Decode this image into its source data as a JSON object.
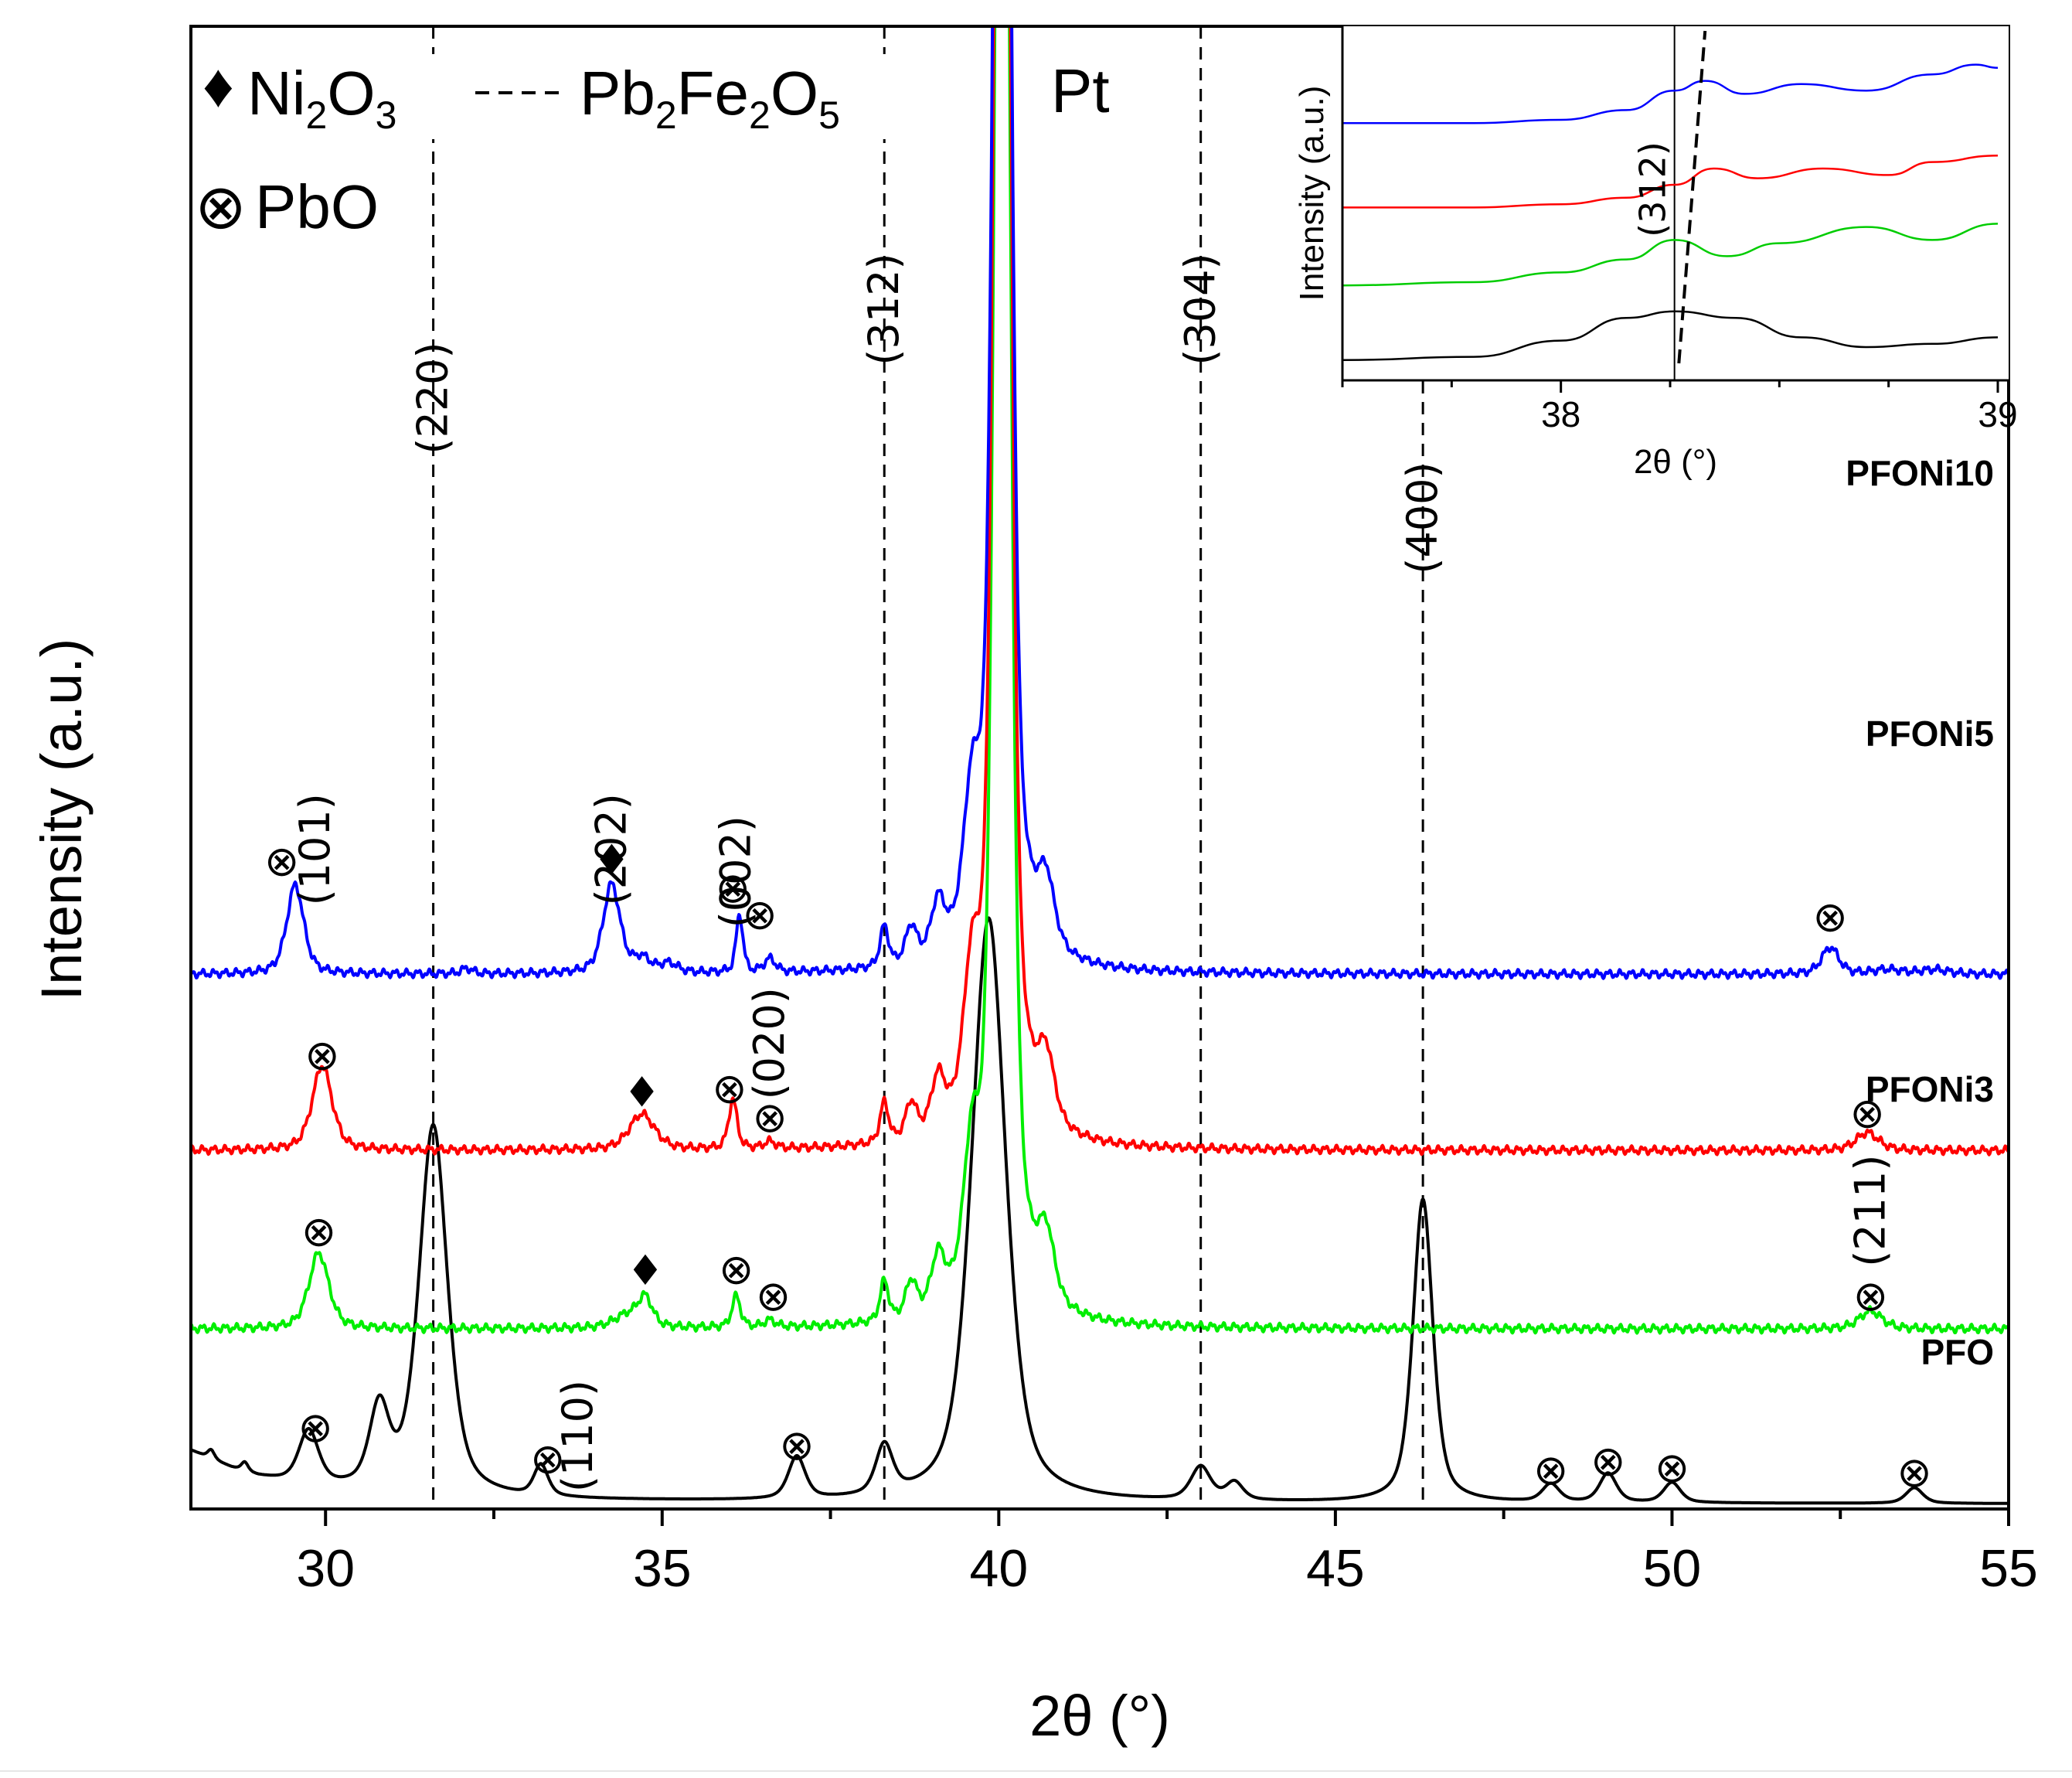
{
  "chart_data": {
    "type": "line",
    "xlabel": "2θ (°)",
    "ylabel": "Intensity (a.u.)",
    "xlim": [
      28,
      55
    ],
    "xticks": [
      30,
      35,
      40,
      45,
      50,
      55
    ],
    "xtick_labels": [
      "30",
      "35",
      "40",
      "45",
      "50",
      "55"
    ],
    "y_ticks_shown": false,
    "legend": [
      {
        "marker": "♦",
        "name": "Ni",
        "sub1": "2",
        "name2": "O",
        "sub2": "3"
      },
      {
        "marker": "- - -",
        "name": "Pb",
        "sub1": "2",
        "name2": "Fe",
        "sub2": "2",
        "name3": "O",
        "sub3": "5"
      },
      {
        "marker": "⊗",
        "name": "PbO"
      },
      {
        "marker": "",
        "name": "Pt"
      }
    ],
    "reference_lines": [
      {
        "x": 31.6,
        "label": "(220)"
      },
      {
        "x": 38.3,
        "label": "(312)"
      },
      {
        "x": 43.0,
        "label": "(304)"
      },
      {
        "x": 46.3,
        "label": "(400)"
      }
    ],
    "series": [
      {
        "name": "PFO",
        "color": "#000000",
        "baseline": 0.0,
        "background": [
          [
            28,
            0.12
          ],
          [
            28.3,
            0.1
          ],
          [
            28.6,
            0.08
          ],
          [
            29,
            0.06
          ],
          [
            29.5,
            0.045
          ],
          [
            30,
            0.035
          ],
          [
            31,
            0.02
          ],
          [
            33,
            0.01
          ],
          [
            38,
            0.005
          ],
          [
            55,
            0.003
          ]
        ],
        "peaks": [
          {
            "x": 28.3,
            "h": 0.02,
            "w": 0.12
          },
          {
            "x": 28.8,
            "h": 0.02,
            "w": 0.12
          },
          {
            "x": 29.75,
            "h": 0.12,
            "w": 0.35
          },
          {
            "x": 30.8,
            "h": 0.18,
            "w": 0.35
          },
          {
            "x": 31.6,
            "h": 0.83,
            "w": 0.5
          },
          {
            "x": 33.2,
            "h": 0.07,
            "w": 0.25
          },
          {
            "x": 37.0,
            "h": 0.095,
            "w": 0.3
          },
          {
            "x": 38.3,
            "h": 0.11,
            "w": 0.3
          },
          {
            "x": 39.85,
            "h": 1.31,
            "w": 0.6
          },
          {
            "x": 43.0,
            "h": 0.075,
            "w": 0.35
          },
          {
            "x": 43.5,
            "h": 0.04,
            "w": 0.3
          },
          {
            "x": 46.3,
            "h": 0.68,
            "w": 0.35
          },
          {
            "x": 48.2,
            "h": 0.04,
            "w": 0.3
          },
          {
            "x": 49.05,
            "h": 0.065,
            "w": 0.3
          },
          {
            "x": 50.0,
            "h": 0.045,
            "w": 0.3
          },
          {
            "x": 53.6,
            "h": 0.035,
            "w": 0.3
          }
        ]
      },
      {
        "name": "PFONi3",
        "color": "#00ee00",
        "baseline": 0.395,
        "peaks": [
          {
            "x": 29.9,
            "h": 0.17,
            "w": 0.35
          },
          {
            "x": 34.5,
            "h": 0.03,
            "w": 0.5
          },
          {
            "x": 34.75,
            "h": 0.06,
            "w": 0.25
          },
          {
            "x": 36.1,
            "h": 0.07,
            "w": 0.15
          },
          {
            "x": 36.6,
            "h": 0.015,
            "w": 0.2
          },
          {
            "x": 38.3,
            "h": 0.09,
            "w": 0.15
          },
          {
            "x": 38.7,
            "h": 0.08,
            "w": 0.2
          },
          {
            "x": 39.1,
            "h": 0.12,
            "w": 0.25
          },
          {
            "x": 39.6,
            "h": 0.3,
            "w": 0.3
          },
          {
            "x": 40.05,
            "h": 5.0,
            "w": 0.25
          },
          {
            "x": 40.7,
            "h": 0.15,
            "w": 0.3
          },
          {
            "x": 52.95,
            "h": 0.04,
            "w": 0.4
          }
        ]
      },
      {
        "name": "PFONi5",
        "color": "#ff0000",
        "baseline": 0.795,
        "peaks": [
          {
            "x": 29.95,
            "h": 0.19,
            "w": 0.35
          },
          {
            "x": 34.7,
            "h": 0.08,
            "w": 0.45
          },
          {
            "x": 36.05,
            "h": 0.11,
            "w": 0.15
          },
          {
            "x": 36.6,
            "h": 0.015,
            "w": 0.2
          },
          {
            "x": 38.3,
            "h": 0.09,
            "w": 0.15
          },
          {
            "x": 38.7,
            "h": 0.08,
            "w": 0.2
          },
          {
            "x": 39.1,
            "h": 0.12,
            "w": 0.25
          },
          {
            "x": 39.6,
            "h": 0.3,
            "w": 0.3
          },
          {
            "x": 40.05,
            "h": 5.0,
            "w": 0.25
          },
          {
            "x": 40.7,
            "h": 0.15,
            "w": 0.3
          },
          {
            "x": 52.9,
            "h": 0.04,
            "w": 0.4
          }
        ]
      },
      {
        "name": "PFONi10",
        "color": "#0000ff",
        "baseline": 1.19,
        "peaks": [
          {
            "x": 29.55,
            "h": 0.2,
            "w": 0.3
          },
          {
            "x": 32.1,
            "h": 0.012,
            "w": 0.2
          },
          {
            "x": 34.25,
            "h": 0.2,
            "w": 0.3
          },
          {
            "x": 34.7,
            "h": 0.03,
            "w": 0.3
          },
          {
            "x": 35.1,
            "h": 0.02,
            "w": 0.3
          },
          {
            "x": 36.15,
            "h": 0.13,
            "w": 0.12
          },
          {
            "x": 36.6,
            "h": 0.03,
            "w": 0.2
          },
          {
            "x": 38.3,
            "h": 0.09,
            "w": 0.15
          },
          {
            "x": 38.7,
            "h": 0.08,
            "w": 0.2
          },
          {
            "x": 39.1,
            "h": 0.12,
            "w": 0.25
          },
          {
            "x": 39.6,
            "h": 0.3,
            "w": 0.3
          },
          {
            "x": 40.05,
            "h": 5.0,
            "w": 0.25
          },
          {
            "x": 40.7,
            "h": 0.15,
            "w": 0.3
          },
          {
            "x": 52.35,
            "h": 0.06,
            "w": 0.3
          },
          {
            "x": 53.2,
            "h": 0.01,
            "w": 0.5
          },
          {
            "x": 53.9,
            "h": 0.01,
            "w": 0.5
          }
        ]
      }
    ],
    "series_labels": [
      "PFONi10",
      "PFONi5",
      "PFONi3",
      "PFO"
    ],
    "peak_annotations": [
      {
        "text": "⊗",
        "x": 29.85,
        "y": 0.18
      },
      {
        "text": "(110)",
        "x": 33.75,
        "y": 0.155,
        "rotate": true
      },
      {
        "text": "⊗",
        "x": 33.3,
        "y": 0.11
      },
      {
        "text": "⊗",
        "x": 37.0,
        "y": 0.14
      },
      {
        "text": "⊗",
        "x": 48.2,
        "y": 0.085
      },
      {
        "text": "⊗",
        "x": 49.05,
        "y": 0.105
      },
      {
        "text": "⊗",
        "x": 50.0,
        "y": 0.09
      },
      {
        "text": "⊗",
        "x": 53.6,
        "y": 0.08
      },
      {
        "text": "⊗",
        "x": 29.9,
        "y": 0.62
      },
      {
        "text": "♦",
        "x": 34.75,
        "y": 0.525
      },
      {
        "text": "⊗",
        "x": 36.1,
        "y": 0.535
      },
      {
        "text": "⊗",
        "x": 36.65,
        "y": 0.475
      },
      {
        "text": "(211)",
        "x": 52.95,
        "y": 0.66,
        "rotate": true
      },
      {
        "text": "⊗",
        "x": 52.95,
        "y": 0.475
      },
      {
        "text": "⊗",
        "x": 29.95,
        "y": 1.015
      },
      {
        "text": "(020)",
        "x": 36.6,
        "y": 1.035,
        "rotate": true
      },
      {
        "text": "♦",
        "x": 34.7,
        "y": 0.925
      },
      {
        "text": "⊗",
        "x": 36.0,
        "y": 0.94
      },
      {
        "text": "⊗",
        "x": 36.6,
        "y": 0.875
      },
      {
        "text": "⊗",
        "x": 52.9,
        "y": 0.885
      },
      {
        "text": "(101)",
        "x": 29.85,
        "y": 1.47,
        "rotate": true
      },
      {
        "text": "⊗",
        "x": 29.35,
        "y": 1.45
      },
      {
        "text": "(202)",
        "x": 34.25,
        "y": 1.47,
        "rotate": true
      },
      {
        "text": "♦",
        "x": 34.25,
        "y": 1.445
      },
      {
        "text": "(002)",
        "x": 36.1,
        "y": 1.42,
        "rotate": true
      },
      {
        "text": "⊗",
        "x": 36.05,
        "y": 1.39
      },
      {
        "text": "⊗",
        "x": 36.45,
        "y": 1.33
      },
      {
        "text": "⊗",
        "x": 52.35,
        "y": 1.325
      }
    ],
    "inset": {
      "xlabel": "2θ (°)",
      "ylabel": "Intensity (a.u.)",
      "xlim": [
        37.5,
        39.0
      ],
      "xticks": [
        38,
        39
      ],
      "xtick_labels": [
        "38",
        "39"
      ],
      "reference_x": 38.26,
      "reference_label": "(312)",
      "shift_line": [
        [
          38.27,
          0.0
        ],
        [
          38.33,
          1.0
        ]
      ],
      "series": [
        {
          "name": "PFO",
          "color": "#000000",
          "points": [
            [
              37.5,
              0.01
            ],
            [
              37.8,
              0.02
            ],
            [
              38.0,
              0.07
            ],
            [
              38.15,
              0.14
            ],
            [
              38.26,
              0.16
            ],
            [
              38.4,
              0.14
            ],
            [
              38.55,
              0.08
            ],
            [
              38.7,
              0.05
            ],
            [
              38.85,
              0.06
            ],
            [
              39.0,
              0.08
            ]
          ]
        },
        {
          "name": "PFONi3",
          "color": "#00cc00",
          "points": [
            [
              37.5,
              0.24
            ],
            [
              37.8,
              0.25
            ],
            [
              38.0,
              0.28
            ],
            [
              38.15,
              0.32
            ],
            [
              38.26,
              0.38
            ],
            [
              38.38,
              0.33
            ],
            [
              38.5,
              0.37
            ],
            [
              38.7,
              0.42
            ],
            [
              38.85,
              0.38
            ],
            [
              39.0,
              0.43
            ]
          ]
        },
        {
          "name": "PFONi5",
          "color": "#ff0000",
          "points": [
            [
              37.5,
              0.48
            ],
            [
              37.8,
              0.48
            ],
            [
              38.0,
              0.49
            ],
            [
              38.15,
              0.51
            ],
            [
              38.26,
              0.55
            ],
            [
              38.35,
              0.6
            ],
            [
              38.45,
              0.57
            ],
            [
              38.6,
              0.6
            ],
            [
              38.75,
              0.58
            ],
            [
              38.85,
              0.62
            ],
            [
              39.0,
              0.64
            ]
          ]
        },
        {
          "name": "PFONi10",
          "color": "#0000ff",
          "points": [
            [
              37.5,
              0.74
            ],
            [
              37.8,
              0.74
            ],
            [
              38.0,
              0.75
            ],
            [
              38.15,
              0.78
            ],
            [
              38.26,
              0.84
            ],
            [
              38.33,
              0.87
            ],
            [
              38.42,
              0.83
            ],
            [
              38.55,
              0.86
            ],
            [
              38.7,
              0.84
            ],
            [
              38.85,
              0.89
            ],
            [
              38.95,
              0.92
            ],
            [
              39.0,
              0.91
            ]
          ]
        }
      ]
    }
  }
}
